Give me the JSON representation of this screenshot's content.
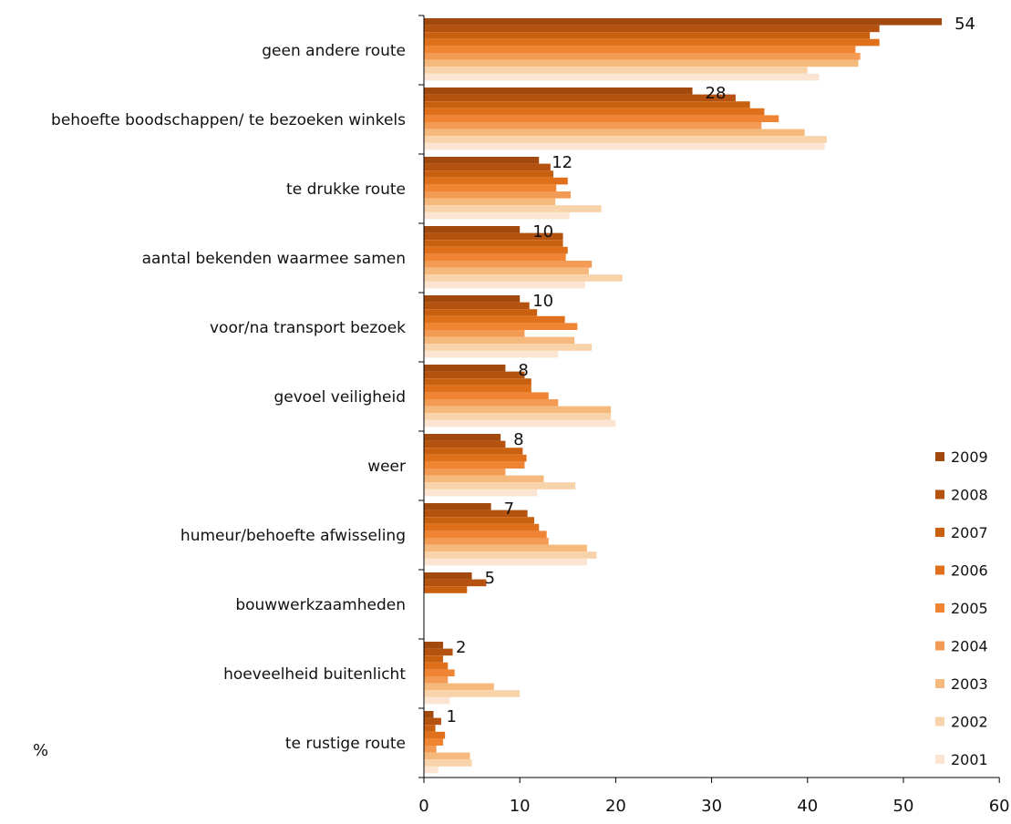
{
  "chart_data": {
    "type": "bar",
    "orientation": "horizontal",
    "title": "",
    "unit_label": "%",
    "xlim": [
      0,
      60
    ],
    "x_ticks": [
      0,
      10,
      20,
      30,
      40,
      50,
      60
    ],
    "grid": false,
    "legend_position": "bottom-right",
    "categories": [
      "geen andere route",
      "behoefte boodschappen/ te bezoeken winkels",
      "te drukke route",
      "aantal bekenden waarmee samen",
      "voor/na transport bezoek",
      "gevoel veiligheid",
      "weer",
      "humeur/behoefte afwisseling",
      "bouwwerkzaamheden",
      "hoeveelheid buitenlicht",
      "te rustige route"
    ],
    "data_labels": [
      "54",
      "28",
      "12",
      "10",
      "10",
      "8",
      "8",
      "7",
      "5",
      "2",
      "1"
    ],
    "series": [
      {
        "name": "2009",
        "color": "#a24a0d",
        "values": [
          54,
          28,
          12,
          10,
          10,
          8.5,
          8,
          7,
          5,
          2,
          1
        ]
      },
      {
        "name": "2008",
        "color": "#b5520f",
        "values": [
          47.5,
          32.5,
          13.2,
          14.5,
          11,
          10.5,
          8.5,
          10.8,
          6.5,
          3,
          1.8
        ]
      },
      {
        "name": "2007",
        "color": "#c96010",
        "values": [
          46.5,
          34,
          13.5,
          14.5,
          11.8,
          11.2,
          10.3,
          11.5,
          4.5,
          2,
          1.2
        ]
      },
      {
        "name": "2006",
        "color": "#e0701a",
        "values": [
          47.5,
          35.5,
          15,
          15,
          14.7,
          11.2,
          10.7,
          12,
          null,
          2.5,
          2.2
        ]
      },
      {
        "name": "2005",
        "color": "#ef8432",
        "values": [
          45,
          37,
          13.8,
          14.8,
          16,
          13,
          10.5,
          12.8,
          null,
          3.2,
          2
        ]
      },
      {
        "name": "2004",
        "color": "#f39a55",
        "values": [
          45.5,
          35.2,
          15.3,
          17.5,
          10.5,
          14,
          8.5,
          13,
          null,
          2.5,
          1.3
        ]
      },
      {
        "name": "2003",
        "color": "#f5b97b",
        "values": [
          45.3,
          39.7,
          13.7,
          17.2,
          15.7,
          19.5,
          12.5,
          17,
          null,
          7.3,
          4.8
        ]
      },
      {
        "name": "2002",
        "color": "#f8d2a8",
        "values": [
          40,
          42,
          18.5,
          20.7,
          17.5,
          19.5,
          15.8,
          18,
          null,
          10,
          5
        ]
      },
      {
        "name": "2001",
        "color": "#fbe5d2",
        "values": [
          41.2,
          41.8,
          15.2,
          16.8,
          14,
          20,
          11.8,
          17,
          null,
          2.7,
          1.5
        ]
      }
    ]
  }
}
